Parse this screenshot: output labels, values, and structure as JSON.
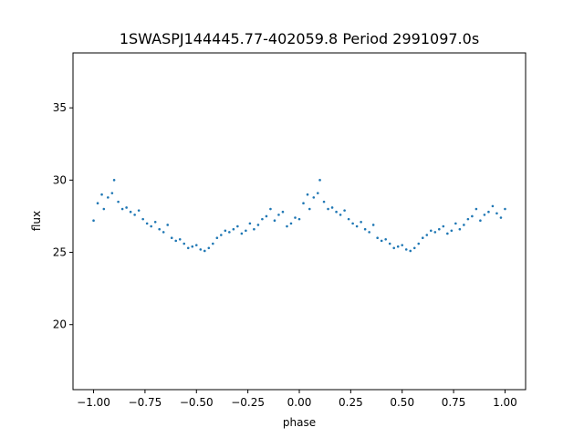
{
  "chart_data": {
    "type": "scatter",
    "title": "1SWASPJ144445.77-402059.8 Period 2991097.0s",
    "xlabel": "phase",
    "ylabel": "flux",
    "xlim": [
      -1.1,
      1.1
    ],
    "ylim": [
      15.5,
      38.8
    ],
    "xticks": [
      -1.0,
      -0.75,
      -0.5,
      -0.25,
      0.0,
      0.25,
      0.5,
      0.75,
      1.0
    ],
    "xtick_labels": [
      "−1.00",
      "−0.75",
      "−0.50",
      "−0.25",
      "0.00",
      "0.25",
      "0.50",
      "0.75",
      "1.00"
    ],
    "yticks": [
      20,
      25,
      30,
      35
    ],
    "ytick_labels": [
      "20",
      "25",
      "30",
      "35"
    ],
    "grid": false,
    "marker_color": "#1f77b4",
    "series": [
      {
        "x": [
          -1.0,
          -0.98,
          -0.96,
          -0.95,
          -0.93,
          -0.91,
          -0.9,
          -0.88,
          -0.86,
          -0.84,
          -0.82,
          -0.8,
          -0.78,
          -0.76,
          -0.74,
          -0.72,
          -0.7,
          -0.68,
          -0.66,
          -0.64,
          -0.62,
          -0.6,
          -0.58,
          -0.56,
          -0.54,
          -0.52,
          -0.5,
          -0.48,
          -0.46,
          -0.44,
          -0.42,
          -0.4,
          -0.38,
          -0.36,
          -0.34,
          -0.32,
          -0.3,
          -0.28,
          -0.26,
          -0.24,
          -0.22,
          -0.2,
          -0.18,
          -0.16,
          -0.14,
          -0.12,
          -0.1,
          -0.08,
          -0.06,
          -0.04,
          -0.02,
          0.0,
          0.02,
          0.04,
          0.05,
          0.07,
          0.09,
          0.1,
          0.12,
          0.14,
          0.16,
          0.18,
          0.2,
          0.22,
          0.24,
          0.26,
          0.28,
          0.3,
          0.32,
          0.34,
          0.36,
          0.38,
          0.4,
          0.42,
          0.44,
          0.46,
          0.48,
          0.5,
          0.52,
          0.54,
          0.56,
          0.58,
          0.6,
          0.62,
          0.64,
          0.66,
          0.68,
          0.7,
          0.72,
          0.74,
          0.76,
          0.78,
          0.8,
          0.82,
          0.84,
          0.86,
          0.88,
          0.9,
          0.92,
          0.94,
          0.96,
          0.98,
          1.0
        ],
        "y": [
          27.2,
          28.4,
          29.0,
          28.0,
          28.8,
          29.1,
          30.0,
          28.5,
          28.0,
          28.1,
          27.8,
          27.6,
          27.9,
          27.3,
          27.0,
          26.8,
          27.1,
          26.6,
          26.4,
          26.9,
          26.0,
          25.8,
          25.9,
          25.6,
          25.3,
          25.4,
          25.5,
          25.2,
          25.1,
          25.3,
          25.6,
          26.0,
          26.2,
          26.5,
          26.4,
          26.6,
          26.8,
          26.3,
          26.5,
          27.0,
          26.6,
          26.9,
          27.3,
          27.5,
          28.0,
          27.2,
          27.6,
          27.8,
          26.8,
          27.0,
          27.4,
          27.3,
          28.4,
          29.0,
          28.0,
          28.8,
          29.1,
          30.0,
          28.5,
          28.0,
          28.1,
          27.8,
          27.6,
          27.9,
          27.3,
          27.0,
          26.8,
          27.1,
          26.6,
          26.4,
          26.9,
          26.0,
          25.8,
          25.9,
          25.6,
          25.3,
          25.4,
          25.5,
          25.2,
          25.1,
          25.3,
          25.6,
          26.0,
          26.2,
          26.5,
          26.4,
          26.6,
          26.8,
          26.3,
          26.5,
          27.0,
          26.6,
          26.9,
          27.3,
          27.5,
          28.0,
          27.2,
          27.6,
          27.8,
          28.2,
          27.7,
          27.4,
          28.0
        ]
      }
    ]
  }
}
